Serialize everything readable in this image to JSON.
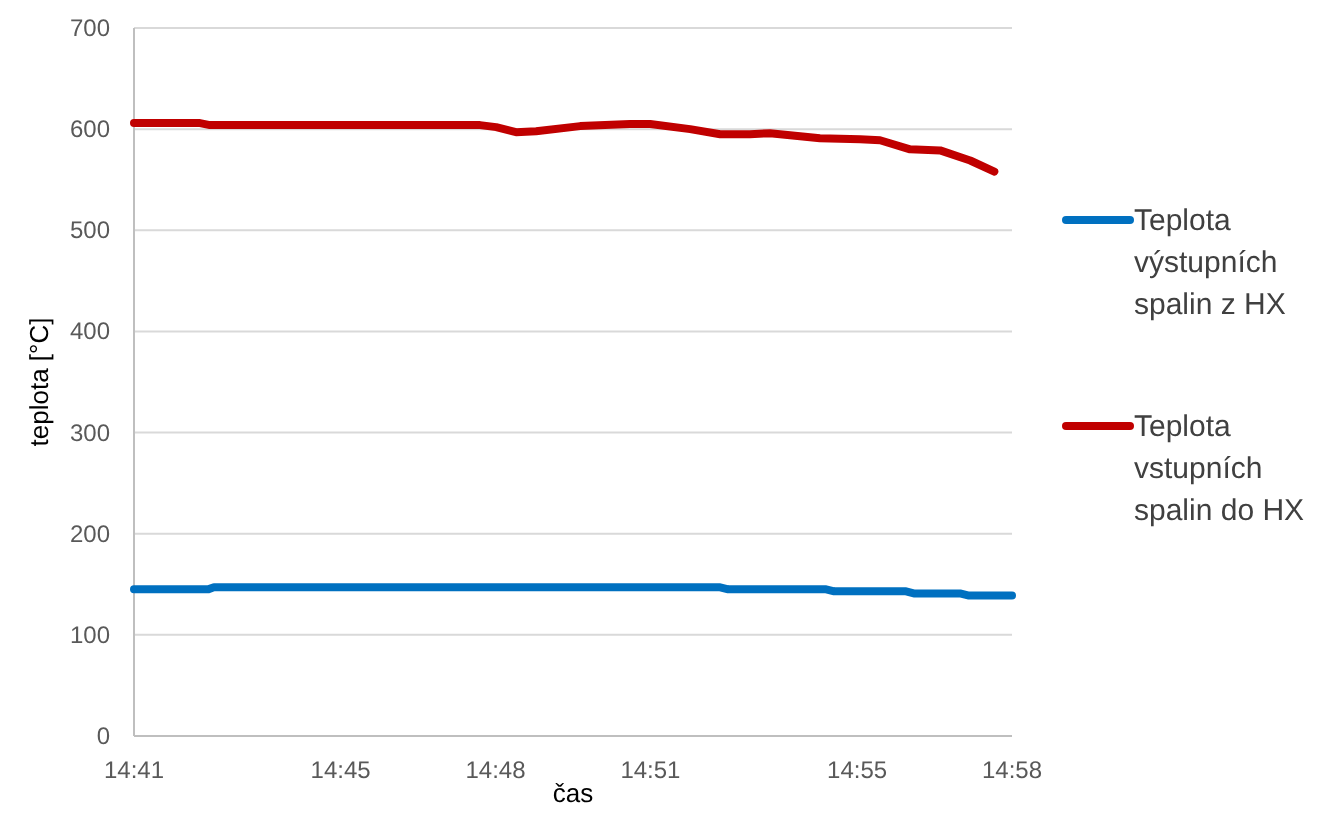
{
  "chart_data": {
    "type": "line",
    "xlabel": "čas",
    "ylabel": "teplota [°C]",
    "ylim": [
      0,
      700
    ],
    "yticks": [
      0,
      100,
      200,
      300,
      400,
      500,
      600,
      700
    ],
    "xlim": [
      14.6833,
      14.9667
    ],
    "xticks": [
      {
        "value": 14.6833,
        "label": "14:41"
      },
      {
        "value": 14.75,
        "label": "14:45"
      },
      {
        "value": 14.8,
        "label": "14:48"
      },
      {
        "value": 14.85,
        "label": "14:51"
      },
      {
        "value": 14.9167,
        "label": "14:55"
      },
      {
        "value": 14.9667,
        "label": "14:58"
      }
    ],
    "grid": "y",
    "legend": "right",
    "marker": "none",
    "line_style": "solid",
    "series": [
      {
        "name": "Teplota výstupních spalin z HX",
        "color": "#0070c0",
        "x": [
          14.6833,
          14.7072,
          14.7091,
          14.8725,
          14.8751,
          14.9067,
          14.9093,
          14.9325,
          14.935,
          14.9499,
          14.9525,
          14.9667
        ],
        "values": [
          145,
          145,
          147,
          147,
          145,
          145,
          143,
          143,
          141,
          141,
          139,
          139
        ]
      },
      {
        "name": "Teplota vstupních spalin do HX",
        "color": "#c00000",
        "x": [
          14.6833,
          14.7046,
          14.7078,
          14.795,
          14.8002,
          14.8066,
          14.8131,
          14.8273,
          14.8434,
          14.8499,
          14.8628,
          14.8725,
          14.8821,
          14.8886,
          14.8983,
          14.9047,
          14.9177,
          14.9241,
          14.9338,
          14.9435,
          14.9532,
          14.961
        ],
        "values": [
          606,
          606,
          604,
          604,
          602,
          597,
          598,
          603,
          605,
          605,
          600,
          595,
          595,
          596,
          593,
          591,
          590,
          589,
          580,
          579,
          569,
          558
        ]
      }
    ]
  }
}
